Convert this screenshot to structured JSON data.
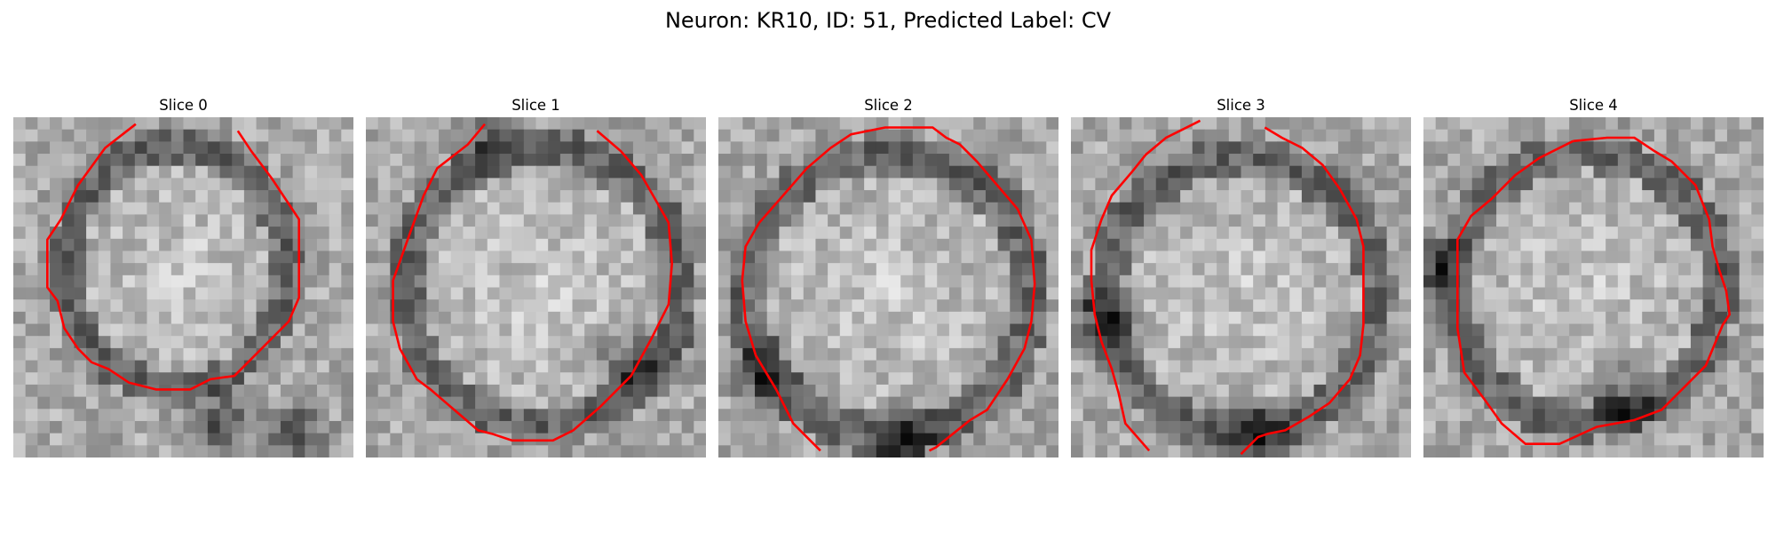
{
  "figure": {
    "title": "Neuron: KR10, ID: 51, Predicted Label: CV"
  },
  "panels": [
    {
      "title": "Slice 0"
    },
    {
      "title": "Slice 1"
    },
    {
      "title": "Slice 2"
    },
    {
      "title": "Slice 3"
    },
    {
      "title": "Slice 4"
    }
  ],
  "colors": {
    "contour": "#ff0000",
    "background": "#ffffff"
  }
}
